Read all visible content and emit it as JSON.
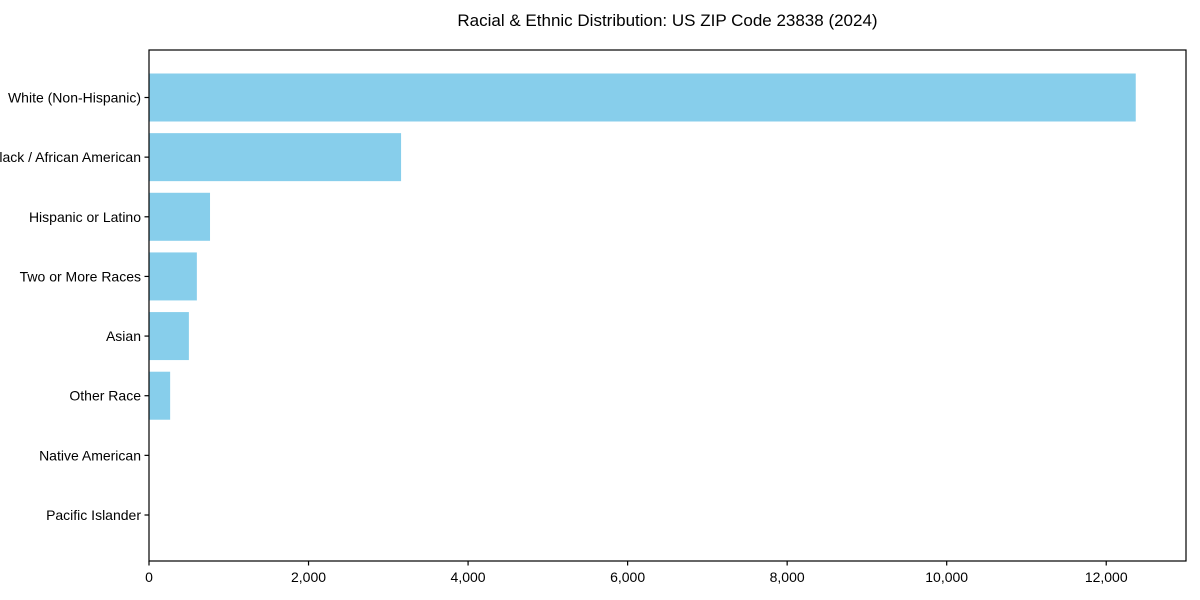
{
  "chart_data": {
    "type": "bar",
    "orientation": "horizontal",
    "title": "Racial & Ethnic Distribution: US ZIP Code 23838 (2024)",
    "categories": [
      "White (Non-Hispanic)",
      "Black / African American",
      "Hispanic or Latino",
      "Two or More Races",
      "Asian",
      "Other Race",
      "Native American",
      "Pacific Islander"
    ],
    "values": [
      12370,
      3160,
      765,
      600,
      500,
      265,
      0,
      0
    ],
    "xlabel": "",
    "ylabel": "",
    "xlim": [
      0,
      13000
    ],
    "x_ticks": [
      0,
      2000,
      4000,
      6000,
      8000,
      10000,
      12000
    ],
    "x_tick_labels": [
      "0",
      "2,000",
      "4,000",
      "6,000",
      "8,000",
      "10,000",
      "12,000"
    ],
    "bar_color": "#87CEEB",
    "frame_color": "#000000",
    "text_color": "#000000",
    "grid": false,
    "legend": "none",
    "background": "#ffffff"
  }
}
